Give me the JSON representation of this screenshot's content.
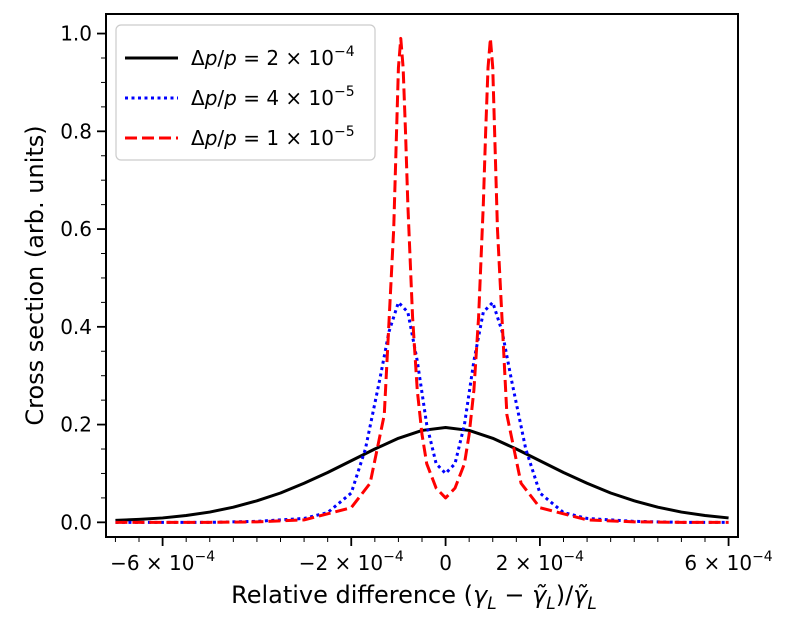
{
  "chart_data": {
    "type": "line",
    "title": "",
    "xlabel_parts": [
      "Relative difference (",
      "γ",
      "L",
      " − ",
      "γ̃",
      "L",
      ")/",
      "γ̃",
      "L"
    ],
    "xlabel_text": "Relative difference (γL − γ̃L)/γ̃L",
    "ylabel": "Cross section (arb. units)",
    "xlim": [
      -0.00072,
      0.00062
    ],
    "ylim": [
      -0.03,
      1.04
    ],
    "x_ticks": [
      {
        "value": -0.0006,
        "mant": "−6",
        "exp": "−4"
      },
      {
        "value": -0.0002,
        "mant": "−2",
        "exp": "−4"
      },
      {
        "value": 0.0,
        "mant": "0",
        "exp": ""
      },
      {
        "value": 0.0002,
        "mant": "2",
        "exp": "−4"
      },
      {
        "value": 0.0006,
        "mant": "6",
        "exp": "−4"
      }
    ],
    "y_ticks": [
      {
        "value": 0.0,
        "label": "0.0"
      },
      {
        "value": 0.2,
        "label": "0.2"
      },
      {
        "value": 0.4,
        "label": "0.4"
      },
      {
        "value": 0.6,
        "label": "0.6"
      },
      {
        "value": 0.8,
        "label": "0.8"
      },
      {
        "value": 1.0,
        "label": "1.0"
      }
    ],
    "legend_location": "top-left",
    "series": [
      {
        "name": "Δp/p = 2 × 10^−4",
        "legend_mant": "2",
        "legend_exp": "−4",
        "color": "#000000",
        "style": "solid",
        "x": [
          -0.0007,
          -0.00065,
          -0.0006,
          -0.00055,
          -0.0005,
          -0.00045,
          -0.0004,
          -0.00035,
          -0.0003,
          -0.00025,
          -0.0002,
          -0.00015,
          -0.0001,
          -5e-05,
          0.0,
          5e-05,
          0.0001,
          0.00015,
          0.0002,
          0.00025,
          0.0003,
          0.00035,
          0.0004,
          0.00045,
          0.0005,
          0.00055,
          0.0006
        ],
        "y": [
          0.004,
          0.006,
          0.009,
          0.014,
          0.021,
          0.031,
          0.044,
          0.06,
          0.08,
          0.102,
          0.126,
          0.15,
          0.172,
          0.188,
          0.194,
          0.188,
          0.172,
          0.15,
          0.126,
          0.102,
          0.08,
          0.06,
          0.044,
          0.031,
          0.021,
          0.014,
          0.009
        ]
      },
      {
        "name": "Δp/p = 4 × 10^−5",
        "legend_mant": "4",
        "legend_exp": "−5",
        "color": "#0000ff",
        "style": "dotted",
        "x": [
          -0.0007,
          -0.0006,
          -0.0005,
          -0.0004,
          -0.0003,
          -0.00025,
          -0.0002,
          -0.00017,
          -0.00014,
          -0.00012,
          -0.0001,
          -8e-05,
          -6e-05,
          -4e-05,
          -2e-05,
          0.0,
          2e-05,
          4e-05,
          6e-05,
          8e-05,
          0.0001,
          0.00012,
          0.00014,
          0.00017,
          0.0002,
          0.00025,
          0.0003,
          0.0004,
          0.0005,
          0.0006
        ],
        "y": [
          0.0,
          0.0,
          0.0,
          0.002,
          0.008,
          0.02,
          0.06,
          0.15,
          0.29,
          0.39,
          0.45,
          0.43,
          0.33,
          0.2,
          0.12,
          0.1,
          0.12,
          0.2,
          0.33,
          0.43,
          0.45,
          0.39,
          0.29,
          0.15,
          0.06,
          0.02,
          0.008,
          0.002,
          0.0,
          0.0
        ]
      },
      {
        "name": "Δp/p = 1 × 10^−5",
        "legend_mant": "1",
        "legend_exp": "−5",
        "color": "#ff0000",
        "style": "dashed",
        "x": [
          -0.0007,
          -0.0006,
          -0.0005,
          -0.0004,
          -0.0003,
          -0.0002,
          -0.00016,
          -0.00013,
          -0.00011,
          -0.0001,
          -9.5e-05,
          -9e-05,
          -8.5e-05,
          -8e-05,
          -7e-05,
          -6e-05,
          -5e-05,
          -4e-05,
          -2e-05,
          0.0,
          2e-05,
          4e-05,
          5e-05,
          6e-05,
          7e-05,
          8e-05,
          8.5e-05,
          9e-05,
          9.5e-05,
          0.0001,
          0.00011,
          0.00013,
          0.00016,
          0.0002,
          0.0003,
          0.0004,
          0.0005,
          0.0006
        ],
        "y": [
          0.0,
          0.0,
          0.0,
          0.001,
          0.005,
          0.03,
          0.08,
          0.22,
          0.6,
          0.93,
          0.99,
          0.93,
          0.8,
          0.65,
          0.42,
          0.27,
          0.18,
          0.12,
          0.07,
          0.05,
          0.07,
          0.12,
          0.18,
          0.27,
          0.42,
          0.65,
          0.8,
          0.93,
          0.99,
          0.93,
          0.6,
          0.22,
          0.08,
          0.03,
          0.005,
          0.001,
          0.0,
          0.0
        ]
      }
    ]
  }
}
